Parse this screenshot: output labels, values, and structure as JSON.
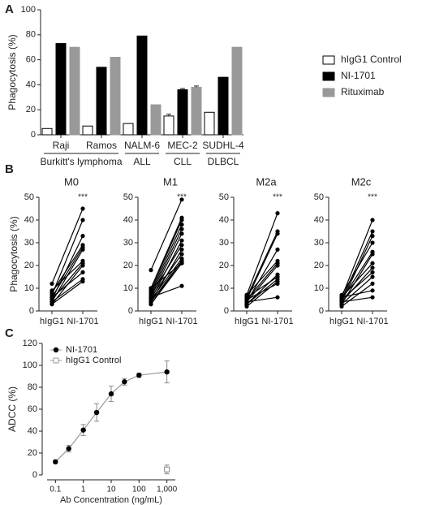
{
  "chart_data": [
    {
      "type": "bar",
      "panel_label": "A",
      "y_label": "Phagocytosis (%)",
      "categories": [
        "Raji",
        "Ramos",
        "NALM-6",
        "MEC-2",
        "SUDHL-4"
      ],
      "groups": [
        {
          "label": "Burkitt's lymphoma",
          "span": [
            0,
            1
          ]
        },
        {
          "label": "ALL",
          "span": [
            2,
            2
          ]
        },
        {
          "label": "CLL",
          "span": [
            3,
            3
          ]
        },
        {
          "label": "DLBCL",
          "span": [
            4,
            4
          ]
        }
      ],
      "series": [
        {
          "name": "hIgG1 Control",
          "color": "#ffffff",
          "stroke": "#000000",
          "values": [
            5,
            7,
            9,
            15,
            18
          ],
          "errors": [
            null,
            null,
            null,
            1.5,
            null
          ]
        },
        {
          "name": "NI-1701",
          "color": "#000000",
          "values": [
            73,
            54,
            79,
            36,
            46
          ],
          "errors": [
            null,
            null,
            null,
            1,
            null
          ]
        },
        {
          "name": "Rituximab",
          "color": "#999999",
          "values": [
            70,
            62,
            24,
            38,
            70
          ],
          "errors": [
            null,
            null,
            null,
            1,
            null
          ]
        }
      ],
      "ylim": [
        0,
        100
      ],
      "yticks": [
        0,
        20,
        40,
        60,
        80,
        100
      ],
      "legend": "right"
    },
    {
      "type": "paired",
      "panel_label": "B",
      "title": "M0",
      "y_label": "Phagocytosis (%)",
      "annotation": "***",
      "categories": [
        "hIgG1",
        "NI-1701"
      ],
      "color": "#000000",
      "series": [
        {
          "values": [
            12,
            45
          ]
        },
        {
          "values": [
            7,
            40
          ]
        },
        {
          "values": [
            5,
            33
          ]
        },
        {
          "values": [
            8,
            29
          ]
        },
        {
          "values": [
            6,
            28
          ]
        },
        {
          "values": [
            4,
            27
          ]
        },
        {
          "values": [
            9,
            22
          ]
        },
        {
          "values": [
            5,
            21
          ]
        },
        {
          "values": [
            3,
            20
          ]
        },
        {
          "values": [
            6,
            17
          ]
        },
        {
          "values": [
            4,
            14
          ]
        },
        {
          "values": [
            3,
            13
          ]
        }
      ],
      "ylim": [
        0,
        50
      ],
      "yticks": [
        0,
        10,
        20,
        30,
        40,
        50
      ]
    },
    {
      "type": "paired",
      "title": "M1",
      "annotation": "***",
      "categories": [
        "hIgG1",
        "NI-1701"
      ],
      "color": "#000000",
      "series": [
        {
          "values": [
            18,
            49
          ]
        },
        {
          "values": [
            10,
            41
          ]
        },
        {
          "values": [
            9,
            40
          ]
        },
        {
          "values": [
            8,
            38
          ]
        },
        {
          "values": [
            7,
            36
          ]
        },
        {
          "values": [
            6,
            34
          ]
        },
        {
          "values": [
            5,
            31
          ]
        },
        {
          "values": [
            7,
            29
          ]
        },
        {
          "values": [
            4,
            27
          ]
        },
        {
          "values": [
            6,
            25
          ]
        },
        {
          "values": [
            5,
            23
          ]
        },
        {
          "values": [
            3,
            22
          ]
        },
        {
          "values": [
            4,
            22
          ]
        },
        {
          "values": [
            10,
            21
          ]
        },
        {
          "values": [
            3,
            21
          ]
        },
        {
          "values": [
            6,
            11
          ]
        }
      ],
      "ylim": [
        0,
        50
      ],
      "yticks": [
        0,
        10,
        20,
        30,
        40,
        50
      ]
    },
    {
      "type": "paired",
      "title": "M2a",
      "annotation": "***",
      "categories": [
        "hIgG1",
        "NI-1701"
      ],
      "color": "#000000",
      "series": [
        {
          "values": [
            7,
            43
          ]
        },
        {
          "values": [
            6,
            35
          ]
        },
        {
          "values": [
            5,
            34
          ]
        },
        {
          "values": [
            4,
            27
          ]
        },
        {
          "values": [
            7,
            22
          ]
        },
        {
          "values": [
            5,
            21
          ]
        },
        {
          "values": [
            4,
            20
          ]
        },
        {
          "values": [
            3,
            16
          ]
        },
        {
          "values": [
            6,
            15
          ]
        },
        {
          "values": [
            3,
            14
          ]
        },
        {
          "values": [
            2,
            13
          ]
        },
        {
          "values": [
            5,
            12
          ]
        },
        {
          "values": [
            4,
            6
          ]
        }
      ],
      "ylim": [
        0,
        50
      ],
      "yticks": [
        0,
        10,
        20,
        30,
        40,
        50
      ]
    },
    {
      "type": "paired",
      "title": "M2c",
      "annotation": "***",
      "categories": [
        "hIgG1",
        "NI-1701"
      ],
      "color": "#000000",
      "series": [
        {
          "values": [
            6,
            40
          ]
        },
        {
          "values": [
            5,
            35
          ]
        },
        {
          "values": [
            4,
            33
          ]
        },
        {
          "values": [
            7,
            30
          ]
        },
        {
          "values": [
            5,
            26
          ]
        },
        {
          "values": [
            3,
            25
          ]
        },
        {
          "values": [
            6,
            21
          ]
        },
        {
          "values": [
            4,
            19
          ]
        },
        {
          "values": [
            5,
            17
          ]
        },
        {
          "values": [
            3,
            15
          ]
        },
        {
          "values": [
            2,
            12
          ]
        },
        {
          "values": [
            6,
            9
          ]
        },
        {
          "values": [
            4,
            6
          ]
        }
      ],
      "ylim": [
        0,
        50
      ],
      "yticks": [
        0,
        10,
        20,
        30,
        40,
        50
      ]
    },
    {
      "type": "line",
      "panel_label": "C",
      "y_label": "ADCC (%)",
      "x_label": "Ab Concentration (ng/mL)",
      "x_scale": "log",
      "series": [
        {
          "name": "NI-1701",
          "color": "#000000",
          "line_color": "#999999",
          "marker": "circle",
          "x": [
            0.1,
            0.3,
            1,
            3,
            10,
            30,
            100,
            1000
          ],
          "values": [
            12,
            24,
            41,
            57,
            74,
            85,
            91,
            94
          ],
          "errors": [
            1.5,
            3,
            5,
            8,
            7,
            3,
            2,
            10
          ]
        },
        {
          "name": "hIgG1 Control",
          "color": "#999999",
          "marker": "square-open",
          "x": [
            1000
          ],
          "values": [
            5
          ],
          "errors": [
            4
          ]
        }
      ],
      "xlim": [
        0.05,
        2000
      ],
      "xticks": [
        0.1,
        1,
        10,
        100,
        {
          "value": 1000,
          "label": "1,000"
        }
      ],
      "ylim": [
        0,
        120
      ],
      "yticks": [
        0,
        20,
        40,
        60,
        80,
        100,
        120
      ],
      "legend": "upper left"
    }
  ]
}
